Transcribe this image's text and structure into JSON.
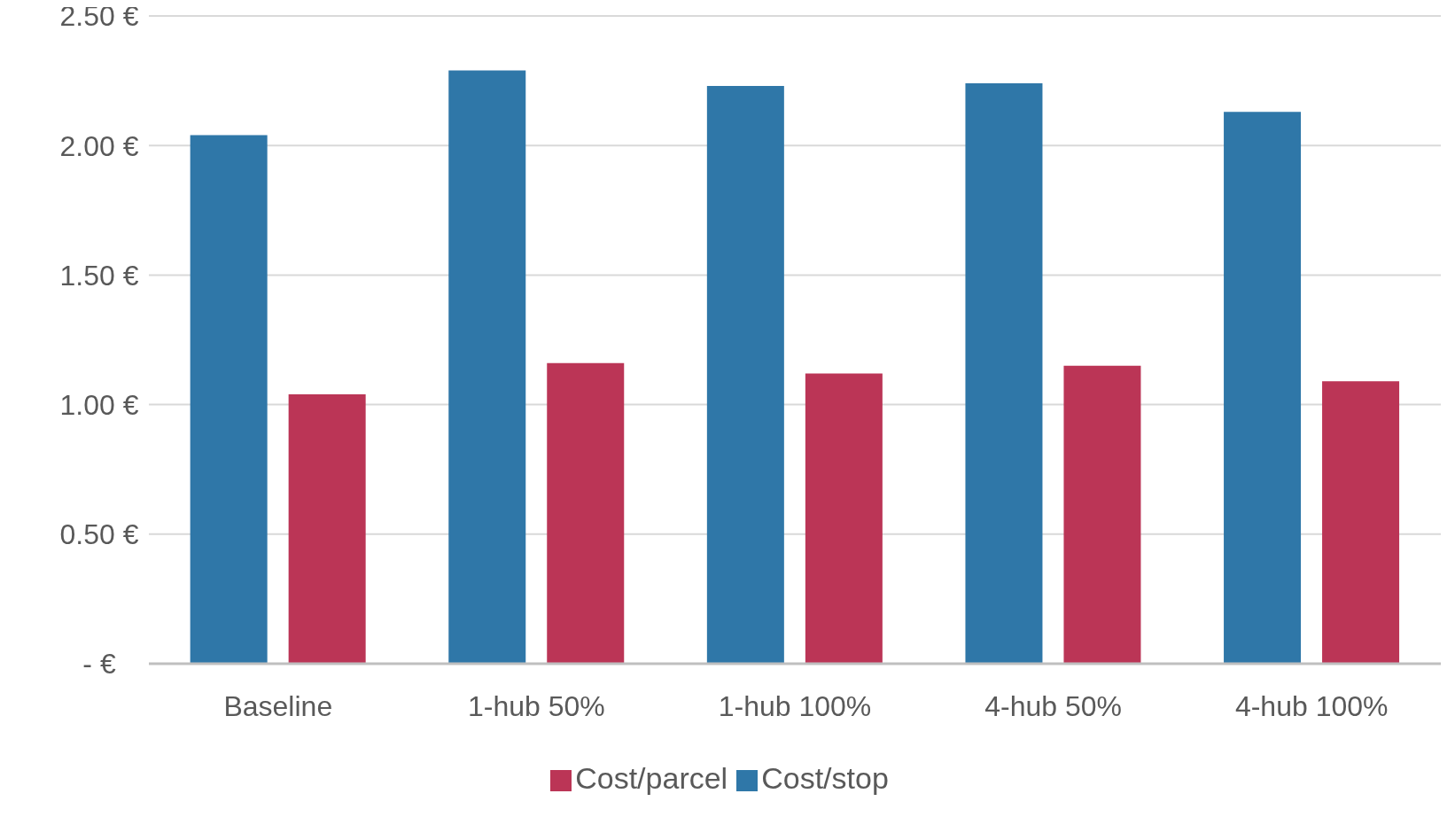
{
  "chart_data": {
    "type": "bar",
    "categories": [
      "Baseline",
      "1-hub 50%",
      "1-hub 100%",
      "4-hub 50%",
      "4-hub 100%"
    ],
    "series": [
      {
        "name": "Cost/stop",
        "color": "#2f77a8",
        "values": [
          2.04,
          2.29,
          2.23,
          2.24,
          2.13
        ]
      },
      {
        "name": "Cost/parcel",
        "color": "#bb3556",
        "values": [
          1.04,
          1.16,
          1.12,
          1.15,
          1.09
        ]
      }
    ],
    "ylim": [
      0,
      2.5
    ],
    "yticks": [
      {
        "value": 0,
        "label": "-   €"
      },
      {
        "value": 0.5,
        "label": "0.50 €"
      },
      {
        "value": 1,
        "label": "1.00 €"
      },
      {
        "value": 1.5,
        "label": "1.50 €"
      },
      {
        "value": 2,
        "label": "2.00 €"
      },
      {
        "value": 2.5,
        "label": "2.50 €"
      }
    ],
    "grid": "y",
    "legend": "bottom"
  }
}
